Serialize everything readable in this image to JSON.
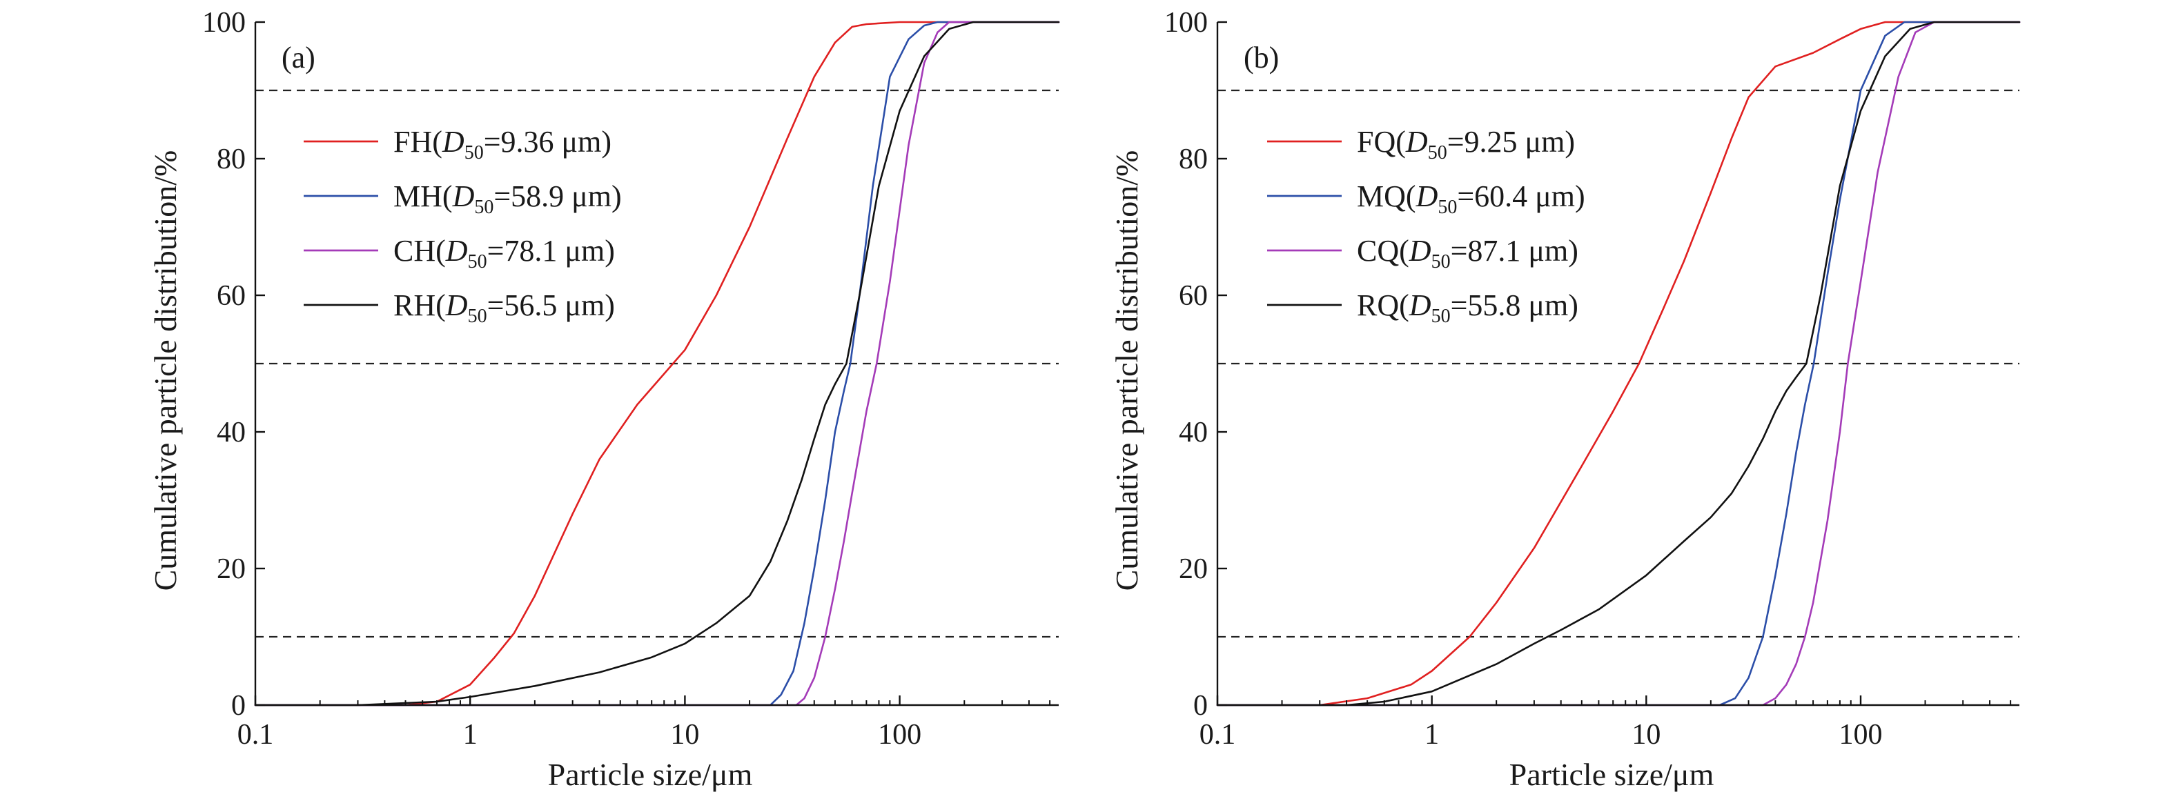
{
  "figure": {
    "panels": [
      {
        "id": "a",
        "panel_label": "(a)",
        "xlabel": "Particle size/μm",
        "ylabel": "Cumulative particle distribution/%",
        "xticks": [
          {
            "value": 0.1,
            "label": "0.1"
          },
          {
            "value": 1,
            "label": "1"
          },
          {
            "value": 10,
            "label": "10"
          },
          {
            "value": 100,
            "label": "100"
          }
        ],
        "yticks": [
          {
            "value": 0,
            "label": "0"
          },
          {
            "value": 20,
            "label": "20"
          },
          {
            "value": 40,
            "label": "40"
          },
          {
            "value": 60,
            "label": "60"
          },
          {
            "value": 80,
            "label": "80"
          },
          {
            "value": 100,
            "label": "100"
          }
        ],
        "legend": [
          {
            "name": "FH",
            "d_sym": "D",
            "d_sub": "50",
            "value": "=9.36 μm",
            "color": "#e02020"
          },
          {
            "name": "MH",
            "d_sym": "D",
            "d_sub": "50",
            "value": "=58.9 μm",
            "color": "#2b4ea8"
          },
          {
            "name": "CH",
            "d_sym": "D",
            "d_sub": "50",
            "value": "=78.1 μm",
            "color": "#a43bb8"
          },
          {
            "name": "RH",
            "d_sym": "D",
            "d_sub": "50",
            "value": "=56.5 μm",
            "color": "#111111"
          }
        ]
      },
      {
        "id": "b",
        "panel_label": "(b)",
        "xlabel": "Particle size/μm",
        "ylabel": "Cumulative particle distribution/%",
        "xticks": [
          {
            "value": 0.1,
            "label": "0.1"
          },
          {
            "value": 1,
            "label": "1"
          },
          {
            "value": 10,
            "label": "10"
          },
          {
            "value": 100,
            "label": "100"
          }
        ],
        "yticks": [
          {
            "value": 0,
            "label": "0"
          },
          {
            "value": 20,
            "label": "20"
          },
          {
            "value": 40,
            "label": "40"
          },
          {
            "value": 60,
            "label": "60"
          },
          {
            "value": 80,
            "label": "80"
          },
          {
            "value": 100,
            "label": "100"
          }
        ],
        "legend": [
          {
            "name": "FQ",
            "d_sym": "D",
            "d_sub": "50",
            "value": "=9.25 μm",
            "color": "#e02020"
          },
          {
            "name": "MQ",
            "d_sym": "D",
            "d_sub": "50",
            "value": "=60.4 μm",
            "color": "#2b4ea8"
          },
          {
            "name": "CQ",
            "d_sym": "D",
            "d_sub": "50",
            "value": "=87.1 μm",
            "color": "#a43bb8"
          },
          {
            "name": "RQ",
            "d_sym": "D",
            "d_sub": "50",
            "value": "=55.8 μm",
            "color": "#111111"
          }
        ]
      }
    ]
  },
  "chart_data": [
    {
      "type": "line",
      "panel": "(a)",
      "x_scale": "log",
      "xlim": [
        0.1,
        550
      ],
      "ylim": [
        0,
        100
      ],
      "xlabel": "Particle size/μm",
      "ylabel": "Cumulative particle distribution/%",
      "reference_lines_y": [
        10,
        50,
        90
      ],
      "series": [
        {
          "name": "FH(D50=9.36 μm)",
          "color": "#e02020",
          "x": [
            0.1,
            0.5,
            0.7,
            1.0,
            1.3,
            1.6,
            2.0,
            3.0,
            4.0,
            6.0,
            8.0,
            10.0,
            14.0,
            20.0,
            30.0,
            40.0,
            50.0,
            60.0,
            70.0,
            100.0,
            550.0
          ],
          "y": [
            0,
            0,
            0.5,
            3,
            7,
            10.5,
            16,
            28,
            36,
            44,
            48.5,
            52,
            60,
            70,
            83,
            92,
            97,
            99.3,
            99.7,
            100,
            100
          ]
        },
        {
          "name": "MH(D50=58.9 μm)",
          "color": "#2b4ea8",
          "x": [
            0.1,
            25,
            28,
            32,
            36,
            40,
            45,
            50,
            55,
            58.9,
            65,
            75,
            90,
            110,
            130,
            150,
            550
          ],
          "y": [
            0,
            0,
            1.5,
            5,
            12,
            20,
            30,
            40,
            46,
            50,
            60,
            76,
            92,
            97.5,
            99.5,
            100,
            100
          ]
        },
        {
          "name": "CH(D50=78.1 μm)",
          "color": "#a43bb8",
          "x": [
            0.1,
            33,
            36,
            40,
            45,
            50,
            55,
            60,
            70,
            78.1,
            90,
            110,
            130,
            150,
            170,
            550
          ],
          "y": [
            0,
            0,
            1,
            4,
            10,
            17,
            24,
            31,
            43,
            50,
            62,
            82,
            94,
            98.5,
            100,
            100
          ]
        },
        {
          "name": "RH(D50=56.5 μm)",
          "color": "#111111",
          "x": [
            0.1,
            0.3,
            0.7,
            1.0,
            2.0,
            4.0,
            7.0,
            10.0,
            14.0,
            20.0,
            25.0,
            30.0,
            35.0,
            40.0,
            45.0,
            50.0,
            56.5,
            65.0,
            80.0,
            100.0,
            130.0,
            170.0,
            220.0,
            550.0
          ],
          "y": [
            0,
            0,
            0.5,
            1.2,
            2.8,
            4.8,
            7,
            9,
            12,
            16,
            21,
            27,
            33,
            39,
            44,
            47,
            50,
            60,
            76,
            87,
            95,
            99,
            100,
            100
          ]
        }
      ]
    },
    {
      "type": "line",
      "panel": "(b)",
      "x_scale": "log",
      "xlim": [
        0.1,
        550
      ],
      "ylim": [
        0,
        100
      ],
      "xlabel": "Particle size/μm",
      "ylabel": "Cumulative particle distribution/%",
      "reference_lines_y": [
        10,
        50,
        90
      ],
      "series": [
        {
          "name": "FQ(D50=9.25 μm)",
          "color": "#e02020",
          "x": [
            0.1,
            0.3,
            0.5,
            0.8,
            1.0,
            1.5,
            2.0,
            3.0,
            5.0,
            7.0,
            9.25,
            12.0,
            15.0,
            20.0,
            25.0,
            30.0,
            40.0,
            60.0,
            80.0,
            100.0,
            130.0,
            170.0,
            550.0
          ],
          "y": [
            0,
            0,
            1,
            3,
            5,
            10,
            15,
            23,
            35,
            43,
            50,
            58,
            65,
            75,
            83,
            89,
            93.5,
            95.5,
            97.5,
            99,
            100,
            100,
            100
          ]
        },
        {
          "name": "MQ(D50=60.4 μm)",
          "color": "#2b4ea8",
          "x": [
            0.1,
            22,
            26,
            30,
            35,
            40,
            45,
            50,
            55,
            60.4,
            70,
            80,
            100,
            130,
            160,
            550
          ],
          "y": [
            0,
            0,
            1,
            4,
            10,
            19,
            28,
            37,
            44,
            50,
            63,
            74,
            90,
            98,
            100,
            100
          ]
        },
        {
          "name": "CQ(D50=87.1 μm)",
          "color": "#a43bb8",
          "x": [
            0.1,
            35,
            40,
            45,
            50,
            55,
            60,
            70,
            80,
            87.1,
            100,
            120,
            150,
            180,
            220,
            550
          ],
          "y": [
            0,
            0,
            1,
            3,
            6,
            10,
            15,
            27,
            40,
            50,
            62,
            78,
            92,
            98.5,
            100,
            100
          ]
        },
        {
          "name": "RQ(D50=55.8 μm)",
          "color": "#111111",
          "x": [
            0.1,
            0.4,
            0.6,
            1.0,
            2.0,
            3.0,
            4.0,
            6.0,
            10.0,
            15.0,
            20.0,
            25.0,
            30.0,
            35.0,
            40.0,
            45.0,
            50.0,
            55.8,
            65.0,
            80.0,
            100.0,
            130.0,
            170.0,
            220.0,
            550.0
          ],
          "y": [
            0,
            0,
            0.5,
            2,
            6,
            9,
            11,
            14,
            19,
            24,
            27.5,
            31,
            35,
            39,
            43,
            46,
            48,
            50,
            60,
            76,
            87,
            95,
            99,
            100,
            100
          ]
        }
      ]
    }
  ]
}
